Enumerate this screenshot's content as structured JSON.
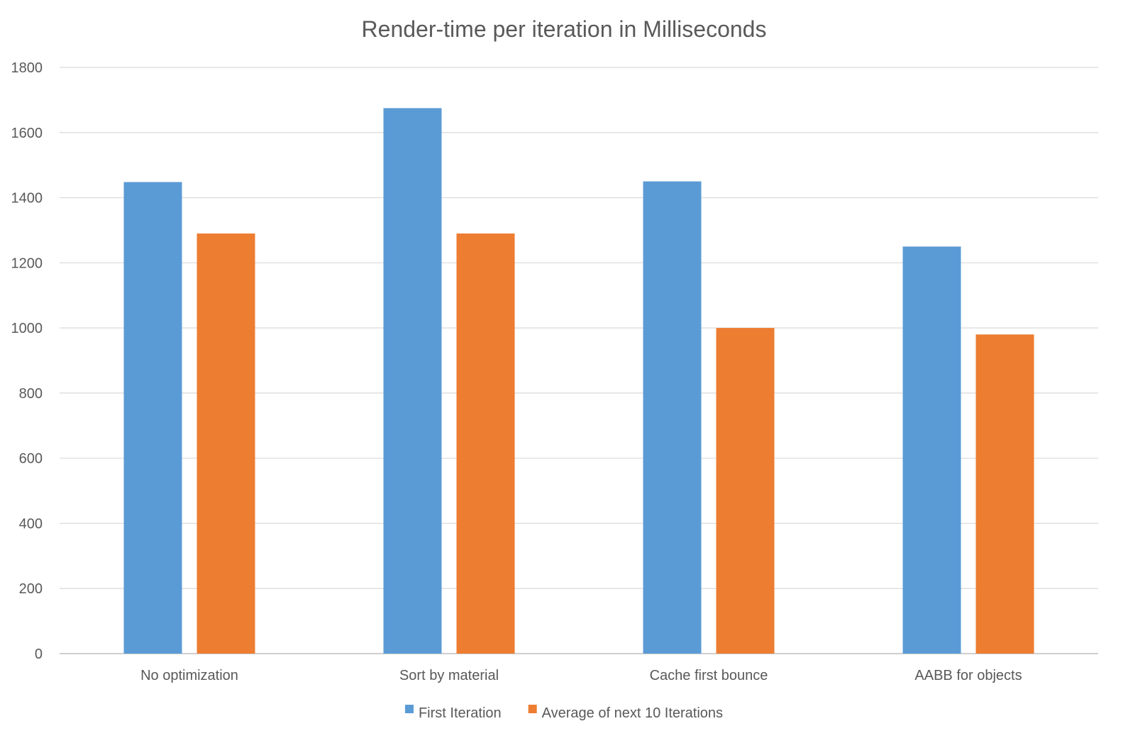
{
  "chart_data": {
    "type": "bar",
    "title": "Render-time per iteration in Milliseconds",
    "categories": [
      "No optimization",
      "Sort by material",
      "Cache first bounce",
      "AABB for objects"
    ],
    "series": [
      {
        "name": "First Iteration",
        "color": "#5B9BD5",
        "values": [
          1448,
          1675,
          1450,
          1250
        ]
      },
      {
        "name": "Average of next 10 Iterations",
        "color": "#ED7D31",
        "values": [
          1290,
          1290,
          1000,
          980
        ]
      }
    ],
    "ylim": [
      0,
      1800
    ],
    "yticks": [
      0,
      200,
      400,
      600,
      800,
      1000,
      1200,
      1400,
      1600,
      1800
    ],
    "xlabel": "",
    "ylabel": "",
    "grid": true,
    "legend": "bottom-center"
  }
}
